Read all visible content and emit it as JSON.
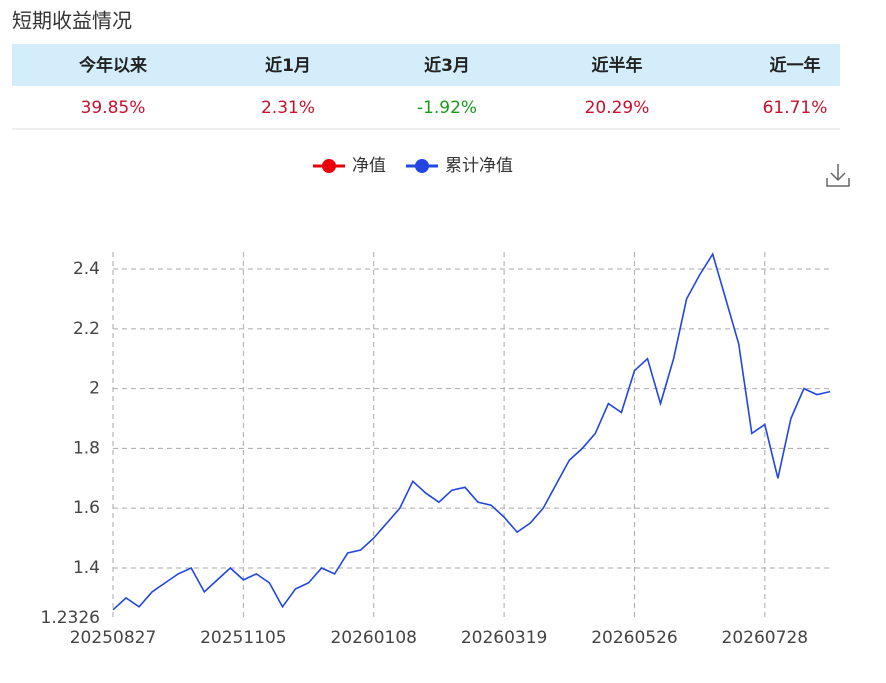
{
  "header": {
    "title": "短期收益情况"
  },
  "table": {
    "headers": [
      "今年以来",
      "近1月",
      "近3月",
      "近半年",
      "近一年"
    ],
    "rows": [
      [
        "39.85%",
        "2.31%",
        "-1.92%",
        "20.29%",
        "61.71%"
      ]
    ],
    "row_colors": [
      [
        "#c8102e",
        "#c8102e",
        "#1a9a1a",
        "#c8102e",
        "#c8102e"
      ]
    ]
  },
  "chart_data": {
    "type": "line",
    "categories": [
      "20250827",
      null,
      null,
      null,
      null,
      null,
      null,
      null,
      null,
      null,
      "20251105",
      null,
      null,
      null,
      null,
      null,
      null,
      null,
      null,
      null,
      "20260108",
      null,
      null,
      null,
      null,
      null,
      null,
      null,
      null,
      null,
      "20260319",
      null,
      null,
      null,
      null,
      null,
      null,
      null,
      null,
      null,
      "20260526",
      null,
      null,
      null,
      null,
      null,
      null,
      null,
      null,
      null,
      "20260728",
      null,
      null,
      null,
      null,
      null
    ],
    "series": [
      {
        "name": "净值",
        "color": "#e8000b",
        "values": [
          null,
          null,
          null,
          null,
          null,
          null,
          null,
          null,
          null,
          null,
          null,
          null,
          null,
          null,
          null,
          null,
          null,
          null,
          null,
          null,
          null,
          null,
          null,
          null,
          null,
          null,
          null,
          null,
          null,
          null,
          null,
          null,
          null,
          null,
          null,
          null,
          null,
          null,
          null,
          null,
          null,
          null,
          null,
          null,
          null,
          null,
          null,
          null,
          null,
          null,
          null,
          null,
          null,
          null,
          null,
          null
        ]
      },
      {
        "name": "累计净值",
        "color": "#2246e0",
        "values": [
          1.26,
          1.3,
          1.27,
          1.32,
          1.35,
          1.38,
          1.4,
          1.32,
          1.36,
          1.4,
          1.36,
          1.38,
          1.35,
          1.27,
          1.33,
          1.35,
          1.4,
          1.38,
          1.45,
          1.46,
          1.5,
          1.55,
          1.6,
          1.69,
          1.65,
          1.62,
          1.66,
          1.67,
          1.62,
          1.61,
          1.57,
          1.52,
          1.55,
          1.6,
          1.68,
          1.76,
          1.8,
          1.85,
          1.95,
          1.92,
          2.06,
          2.1,
          1.95,
          2.1,
          2.3,
          2.38,
          2.45,
          2.3,
          2.15,
          1.85,
          1.88,
          1.7,
          1.9,
          2.0,
          1.98,
          1.99
        ]
      }
    ],
    "ylim": [
      1.2326,
      2.457
    ],
    "yticks": [
      1.2326,
      1.4,
      1.6,
      1.8,
      2,
      2.2,
      2.4
    ],
    "grid": true
  }
}
